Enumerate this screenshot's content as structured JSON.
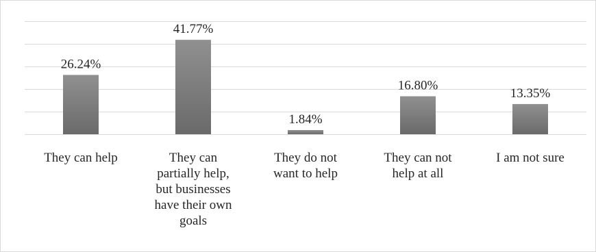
{
  "chart_data": {
    "type": "bar",
    "categories": [
      "They can help",
      "They can partially help, but businesses have their own goals",
      "They do not want to help",
      "They can not help at all",
      "I am not sure"
    ],
    "category_lines": [
      [
        "They can help"
      ],
      [
        "They can",
        "partially help,",
        "but businesses",
        "have their own",
        "goals"
      ],
      [
        "They do not",
        "want to help"
      ],
      [
        "They can not",
        "help at all"
      ],
      [
        "I am not sure"
      ]
    ],
    "values": [
      26.24,
      41.77,
      1.84,
      16.8,
      13.35
    ],
    "value_labels": [
      "26.24%",
      "41.77%",
      "1.84%",
      "16.80%",
      "13.35%"
    ],
    "ylim": [
      0,
      50
    ],
    "y_tick_step": 10,
    "grid": true,
    "bar_color": "#808080",
    "bar_gradient_top": "#909090",
    "bar_gradient_bottom": "#6a6a6a",
    "grid_color": "#d9d9d9",
    "text_color": "#262626"
  }
}
